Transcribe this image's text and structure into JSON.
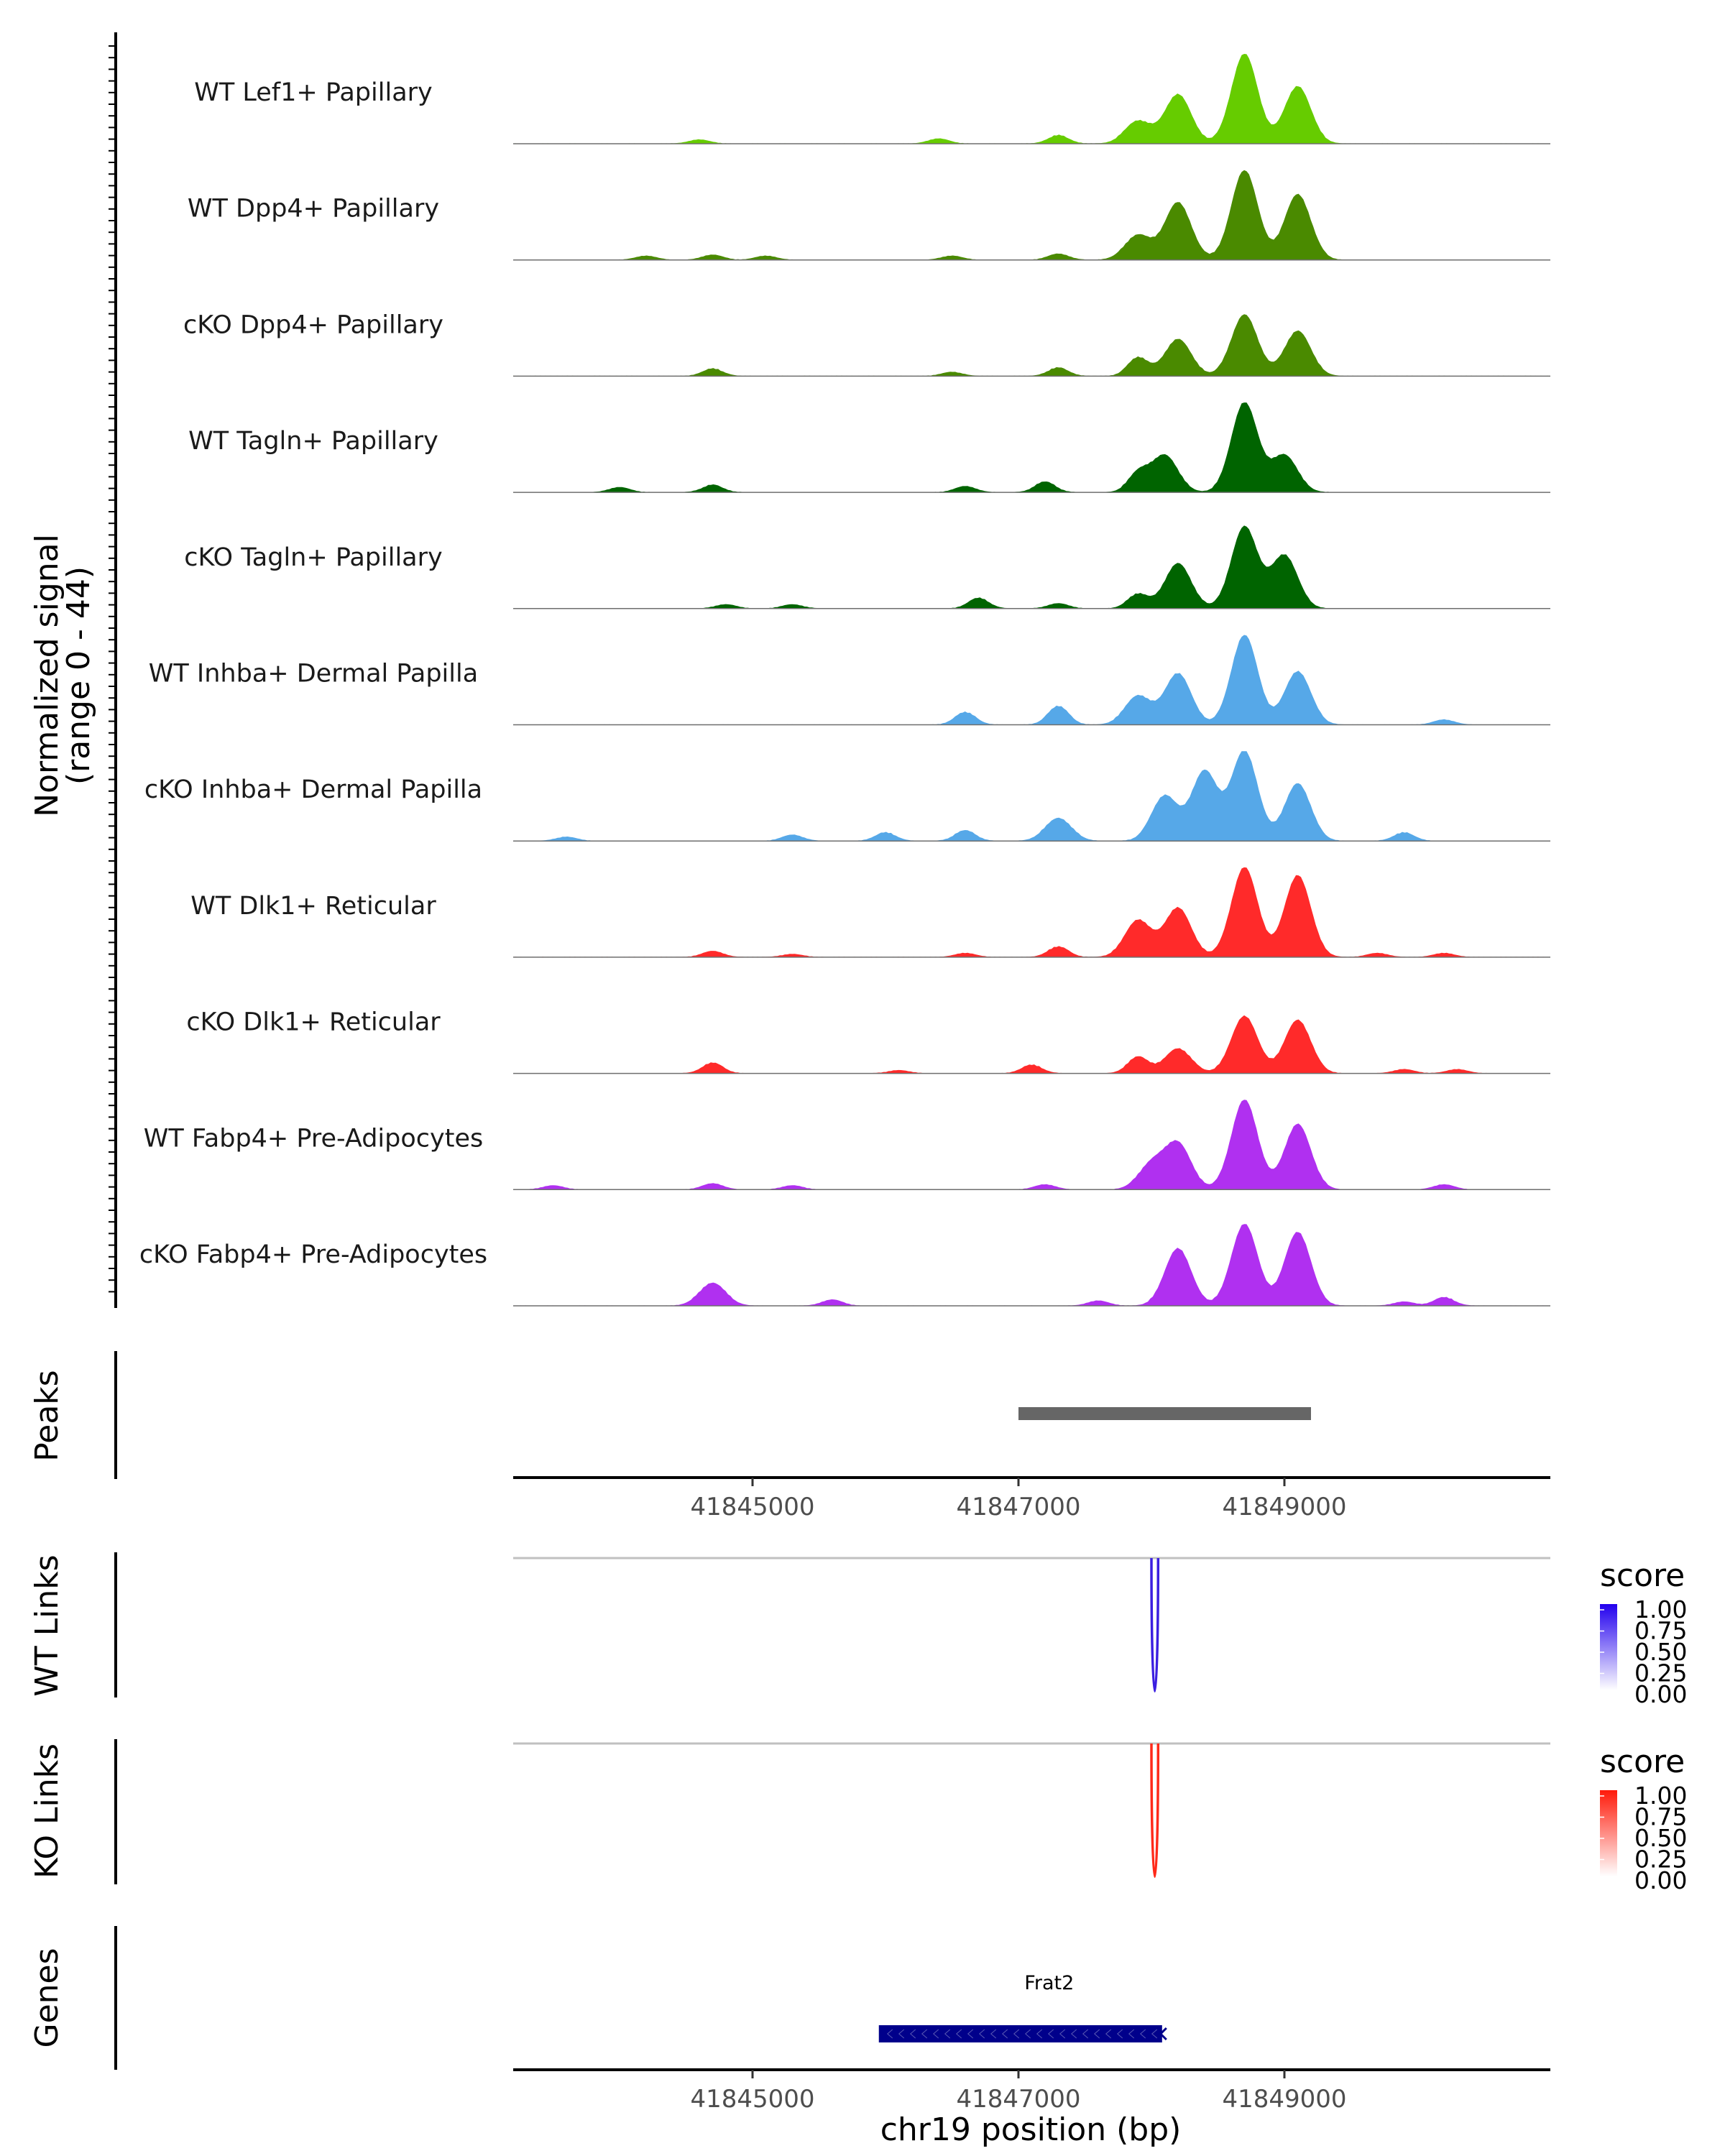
{
  "chart_data": {
    "type": "area",
    "title": "",
    "region": {
      "chromosome": "chr19",
      "start": 41843200,
      "end": 41851000
    },
    "xlabel": "chr19 position (bp)",
    "xticks": [
      41845000,
      41847000,
      41849000
    ],
    "xtick_labels": [
      "41845000",
      "41847000",
      "41849000"
    ],
    "ylabel_line1": "Normalized signal",
    "ylabel_line2": "(range 0 - 44)",
    "ylim": [
      0,
      44
    ],
    "coverage_tracks": [
      {
        "name": "WT Lef1+ Papillary",
        "color": "#66cc00",
        "peaks": [
          [
            41844600,
            2
          ],
          [
            41846400,
            2.5
          ],
          [
            41847300,
            4
          ],
          [
            41847900,
            11
          ],
          [
            41848200,
            24
          ],
          [
            41848700,
            44
          ],
          [
            41849100,
            28
          ]
        ]
      },
      {
        "name": "WT Dpp4+ Papillary",
        "color": "#4a8a00",
        "peaks": [
          [
            41844200,
            2
          ],
          [
            41844700,
            2.5
          ],
          [
            41845100,
            2
          ],
          [
            41846500,
            2
          ],
          [
            41847300,
            3
          ],
          [
            41847900,
            12
          ],
          [
            41848200,
            28
          ],
          [
            41848700,
            44
          ],
          [
            41849100,
            32
          ]
        ]
      },
      {
        "name": "cKO Dpp4+ Papillary",
        "color": "#4a8a00",
        "peaks": [
          [
            41844700,
            3.5
          ],
          [
            41846500,
            2
          ],
          [
            41847300,
            4
          ],
          [
            41847900,
            9
          ],
          [
            41848200,
            18
          ],
          [
            41848700,
            30
          ],
          [
            41849100,
            22
          ]
        ]
      },
      {
        "name": "WT Tagln+ Papillary",
        "color": "#006400",
        "peaks": [
          [
            41844000,
            2.5
          ],
          [
            41844700,
            3.5
          ],
          [
            41846600,
            3
          ],
          [
            41847200,
            5
          ],
          [
            41847900,
            9
          ],
          [
            41848100,
            18
          ],
          [
            41848700,
            44
          ],
          [
            41849000,
            18
          ]
        ]
      },
      {
        "name": "cKO Tagln+ Papillary",
        "color": "#006400",
        "peaks": [
          [
            41844800,
            2
          ],
          [
            41845300,
            2
          ],
          [
            41846700,
            5
          ],
          [
            41847300,
            2.5
          ],
          [
            41847900,
            7
          ],
          [
            41848200,
            22
          ],
          [
            41848700,
            40
          ],
          [
            41849000,
            26
          ]
        ]
      },
      {
        "name": "WT Inhba+ Dermal Papilla",
        "color": "#56a8e8",
        "peaks": [
          [
            41846600,
            6
          ],
          [
            41847300,
            9
          ],
          [
            41847900,
            14
          ],
          [
            41848200,
            25
          ],
          [
            41848700,
            44
          ],
          [
            41849100,
            26
          ],
          [
            41850200,
            2.5
          ]
        ]
      },
      {
        "name": "cKO Inhba+ Dermal Papilla",
        "color": "#56a8e8",
        "peaks": [
          [
            41843600,
            2
          ],
          [
            41845300,
            3
          ],
          [
            41846000,
            4
          ],
          [
            41846600,
            5
          ],
          [
            41847300,
            11
          ],
          [
            41848100,
            22
          ],
          [
            41848400,
            34
          ],
          [
            41848700,
            44
          ],
          [
            41849100,
            28
          ],
          [
            41849900,
            4
          ]
        ]
      },
      {
        "name": "WT Dlk1+ Reticular",
        "color": "#ff2a2a",
        "peaks": [
          [
            41844700,
            3
          ],
          [
            41845300,
            1.5
          ],
          [
            41846600,
            2
          ],
          [
            41847300,
            5
          ],
          [
            41847900,
            18
          ],
          [
            41848200,
            24
          ],
          [
            41848700,
            44
          ],
          [
            41849100,
            40
          ],
          [
            41849700,
            2
          ],
          [
            41850200,
            2
          ]
        ]
      },
      {
        "name": "cKO Dlk1+ Reticular",
        "color": "#ff2a2a",
        "peaks": [
          [
            41844700,
            5
          ],
          [
            41846100,
            1.5
          ],
          [
            41847100,
            4
          ],
          [
            41847900,
            8
          ],
          [
            41848200,
            12
          ],
          [
            41848700,
            28
          ],
          [
            41849100,
            26
          ],
          [
            41849900,
            2
          ],
          [
            41850300,
            2
          ]
        ]
      },
      {
        "name": "WT Fabp4+ Pre-Adipocytes",
        "color": "#b030f0",
        "peaks": [
          [
            41843500,
            2
          ],
          [
            41844700,
            3
          ],
          [
            41845300,
            2
          ],
          [
            41847200,
            2.5
          ],
          [
            41848000,
            12
          ],
          [
            41848200,
            22
          ],
          [
            41848700,
            44
          ],
          [
            41849100,
            32
          ],
          [
            41850200,
            2.5
          ]
        ]
      },
      {
        "name": "cKO Fabp4+ Pre-Adipocytes",
        "color": "#b030f0",
        "peaks": [
          [
            41844700,
            11
          ],
          [
            41845600,
            3
          ],
          [
            41847600,
            2.5
          ],
          [
            41848200,
            28
          ],
          [
            41848700,
            40
          ],
          [
            41849100,
            36
          ],
          [
            41849900,
            2
          ],
          [
            41850200,
            4
          ]
        ]
      }
    ],
    "peaks_track": {
      "label": "Peaks",
      "peaks": [
        {
          "start": 41847000,
          "end": 41849200
        }
      ],
      "color": "#666666"
    },
    "links_tracks": [
      {
        "label": "WT Links",
        "color": "#3b1fe0",
        "links": [
          {
            "start": 41848000,
            "end": 41848050,
            "score": 1.0
          }
        ],
        "legend": {
          "title": "score",
          "ticks": [
            "1.00",
            "0.75",
            "0.50",
            "0.25",
            "0.00"
          ],
          "color_high": "#2200ee",
          "color_low": "#ffffff"
        }
      },
      {
        "label": "KO Links",
        "color": "#ff2a1a",
        "links": [
          {
            "start": 41848000,
            "end": 41848050,
            "score": 1.0
          }
        ],
        "legend": {
          "title": "score",
          "ticks": [
            "1.00",
            "0.75",
            "0.50",
            "0.25",
            "0.00"
          ],
          "color_high": "#ff1a0a",
          "color_low": "#ffffff"
        }
      }
    ],
    "genes_track": {
      "label": "Genes",
      "genes": [
        {
          "name": "Frat2",
          "start": 41845950,
          "end": 41848080,
          "strand": "-",
          "color": "#00008b"
        }
      ]
    }
  }
}
